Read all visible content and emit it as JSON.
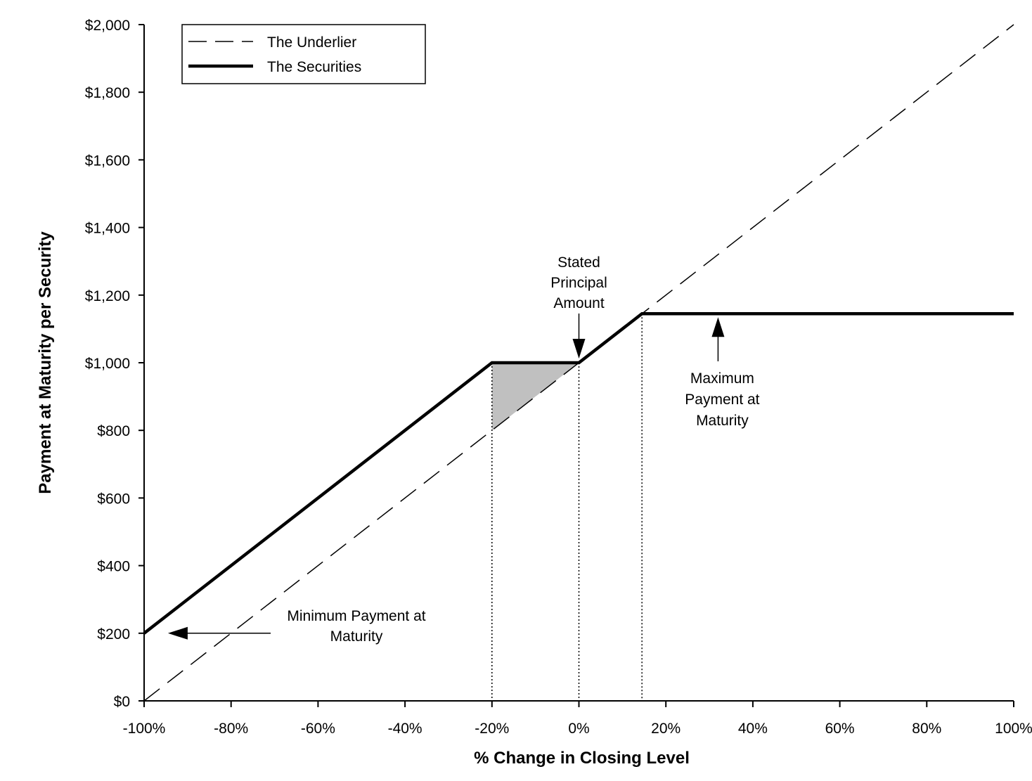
{
  "chart_data": {
    "type": "line",
    "xlabel": "% Change in Closing Level",
    "ylabel": "Payment at Maturity per Security",
    "xlim": [
      -100,
      100
    ],
    "ylim": [
      0,
      2000
    ],
    "x_ticks": [
      -100,
      -80,
      -60,
      -40,
      -20,
      0,
      20,
      40,
      60,
      80,
      100
    ],
    "x_tick_labels": [
      "-100%",
      "-80%",
      "-60%",
      "-40%",
      "-20%",
      "0%",
      "20%",
      "40%",
      "60%",
      "80%",
      "100%"
    ],
    "y_ticks": [
      0,
      200,
      400,
      600,
      800,
      1000,
      1200,
      1400,
      1600,
      1800,
      2000
    ],
    "y_tick_labels": [
      "$0",
      "$200",
      "$400",
      "$600",
      "$800",
      "$1,000",
      "$1,200",
      "$1,400",
      "$1,600",
      "$1,800",
      "$2,000"
    ],
    "legend_position": "top-left",
    "grid": false,
    "series": [
      {
        "name": "The Underlier",
        "style": "dashed",
        "x": [
          -100,
          100
        ],
        "y": [
          0,
          2000
        ]
      },
      {
        "name": "The Securities",
        "style": "solid-thick",
        "x": [
          -100,
          -20,
          0,
          14.5,
          100
        ],
        "y": [
          200,
          1000,
          1000,
          1145,
          1145
        ]
      }
    ],
    "shaded_region": {
      "x": [
        -20,
        0,
        -20
      ],
      "y": [
        1000,
        1000,
        800
      ],
      "color": "#c0c0c0"
    },
    "reference_lines": [
      {
        "x": -20,
        "y_top": 1000
      },
      {
        "x": 0,
        "y_top": 1000
      },
      {
        "x": 14.5,
        "y_top": 1145
      }
    ],
    "annotations": [
      {
        "lines": [
          "Stated",
          "Principal",
          "Amount"
        ],
        "target": [
          0,
          1000
        ],
        "arrow": "down"
      },
      {
        "lines": [
          "Maximum",
          "Payment at",
          "Maturity"
        ],
        "target": [
          32,
          1145
        ],
        "arrow": "up"
      },
      {
        "lines": [
          "Minimum Payment at",
          "Maturity"
        ],
        "target": [
          -95,
          200
        ],
        "arrow": "left"
      }
    ]
  }
}
